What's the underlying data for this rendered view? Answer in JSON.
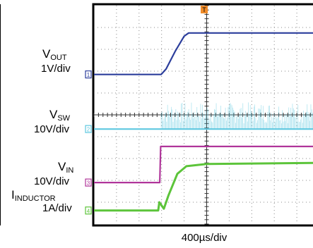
{
  "chart_data": {
    "type": "line",
    "time_scale": "400µs/div",
    "trigger_marker": "T",
    "vout_label": {
      "main": "V",
      "sub": "OUT",
      "scale": "1V/div"
    },
    "vsw_label": {
      "main": "V",
      "sub": "SW",
      "scale": "10V/div"
    },
    "vin_label": {
      "main": "V",
      "sub": "IN",
      "scale": "10V/div"
    },
    "iind_label": {
      "main": "I",
      "sub": "INDUCTOR",
      "scale": "1A/div"
    },
    "channels": [
      {
        "id": "1",
        "name": "VOUT",
        "color": "#2c3e9c",
        "points": [
          [
            0,
            6.85
          ],
          [
            2.98,
            6.85
          ],
          [
            3.2,
            7.1
          ],
          [
            3.6,
            7.9
          ],
          [
            4.0,
            8.6
          ],
          [
            4.2,
            8.75
          ],
          [
            10,
            8.75
          ]
        ]
      },
      {
        "id": "2",
        "name": "VSW",
        "color": "#5fc8e0",
        "switching_start": 2.98,
        "points": [
          [
            0,
            4.35
          ],
          [
            10,
            4.35
          ]
        ]
      },
      {
        "id": "3",
        "name": "VIN",
        "color": "#b0359a",
        "points": [
          [
            0,
            1.9
          ],
          [
            2.92,
            1.9
          ],
          [
            2.96,
            3.55
          ],
          [
            10,
            3.55
          ]
        ]
      },
      {
        "id": "4",
        "name": "IINDUCTOR",
        "color": "#5cc43a",
        "points": [
          [
            0,
            0.62
          ],
          [
            2.85,
            0.62
          ],
          [
            2.9,
            1.0
          ],
          [
            3.1,
            0.7
          ],
          [
            3.3,
            1.3
          ],
          [
            3.7,
            2.3
          ],
          [
            4.1,
            2.65
          ],
          [
            5,
            2.75
          ],
          [
            10,
            2.8
          ]
        ]
      }
    ],
    "grid": true,
    "x_divisions": 10,
    "y_divisions": 10
  }
}
